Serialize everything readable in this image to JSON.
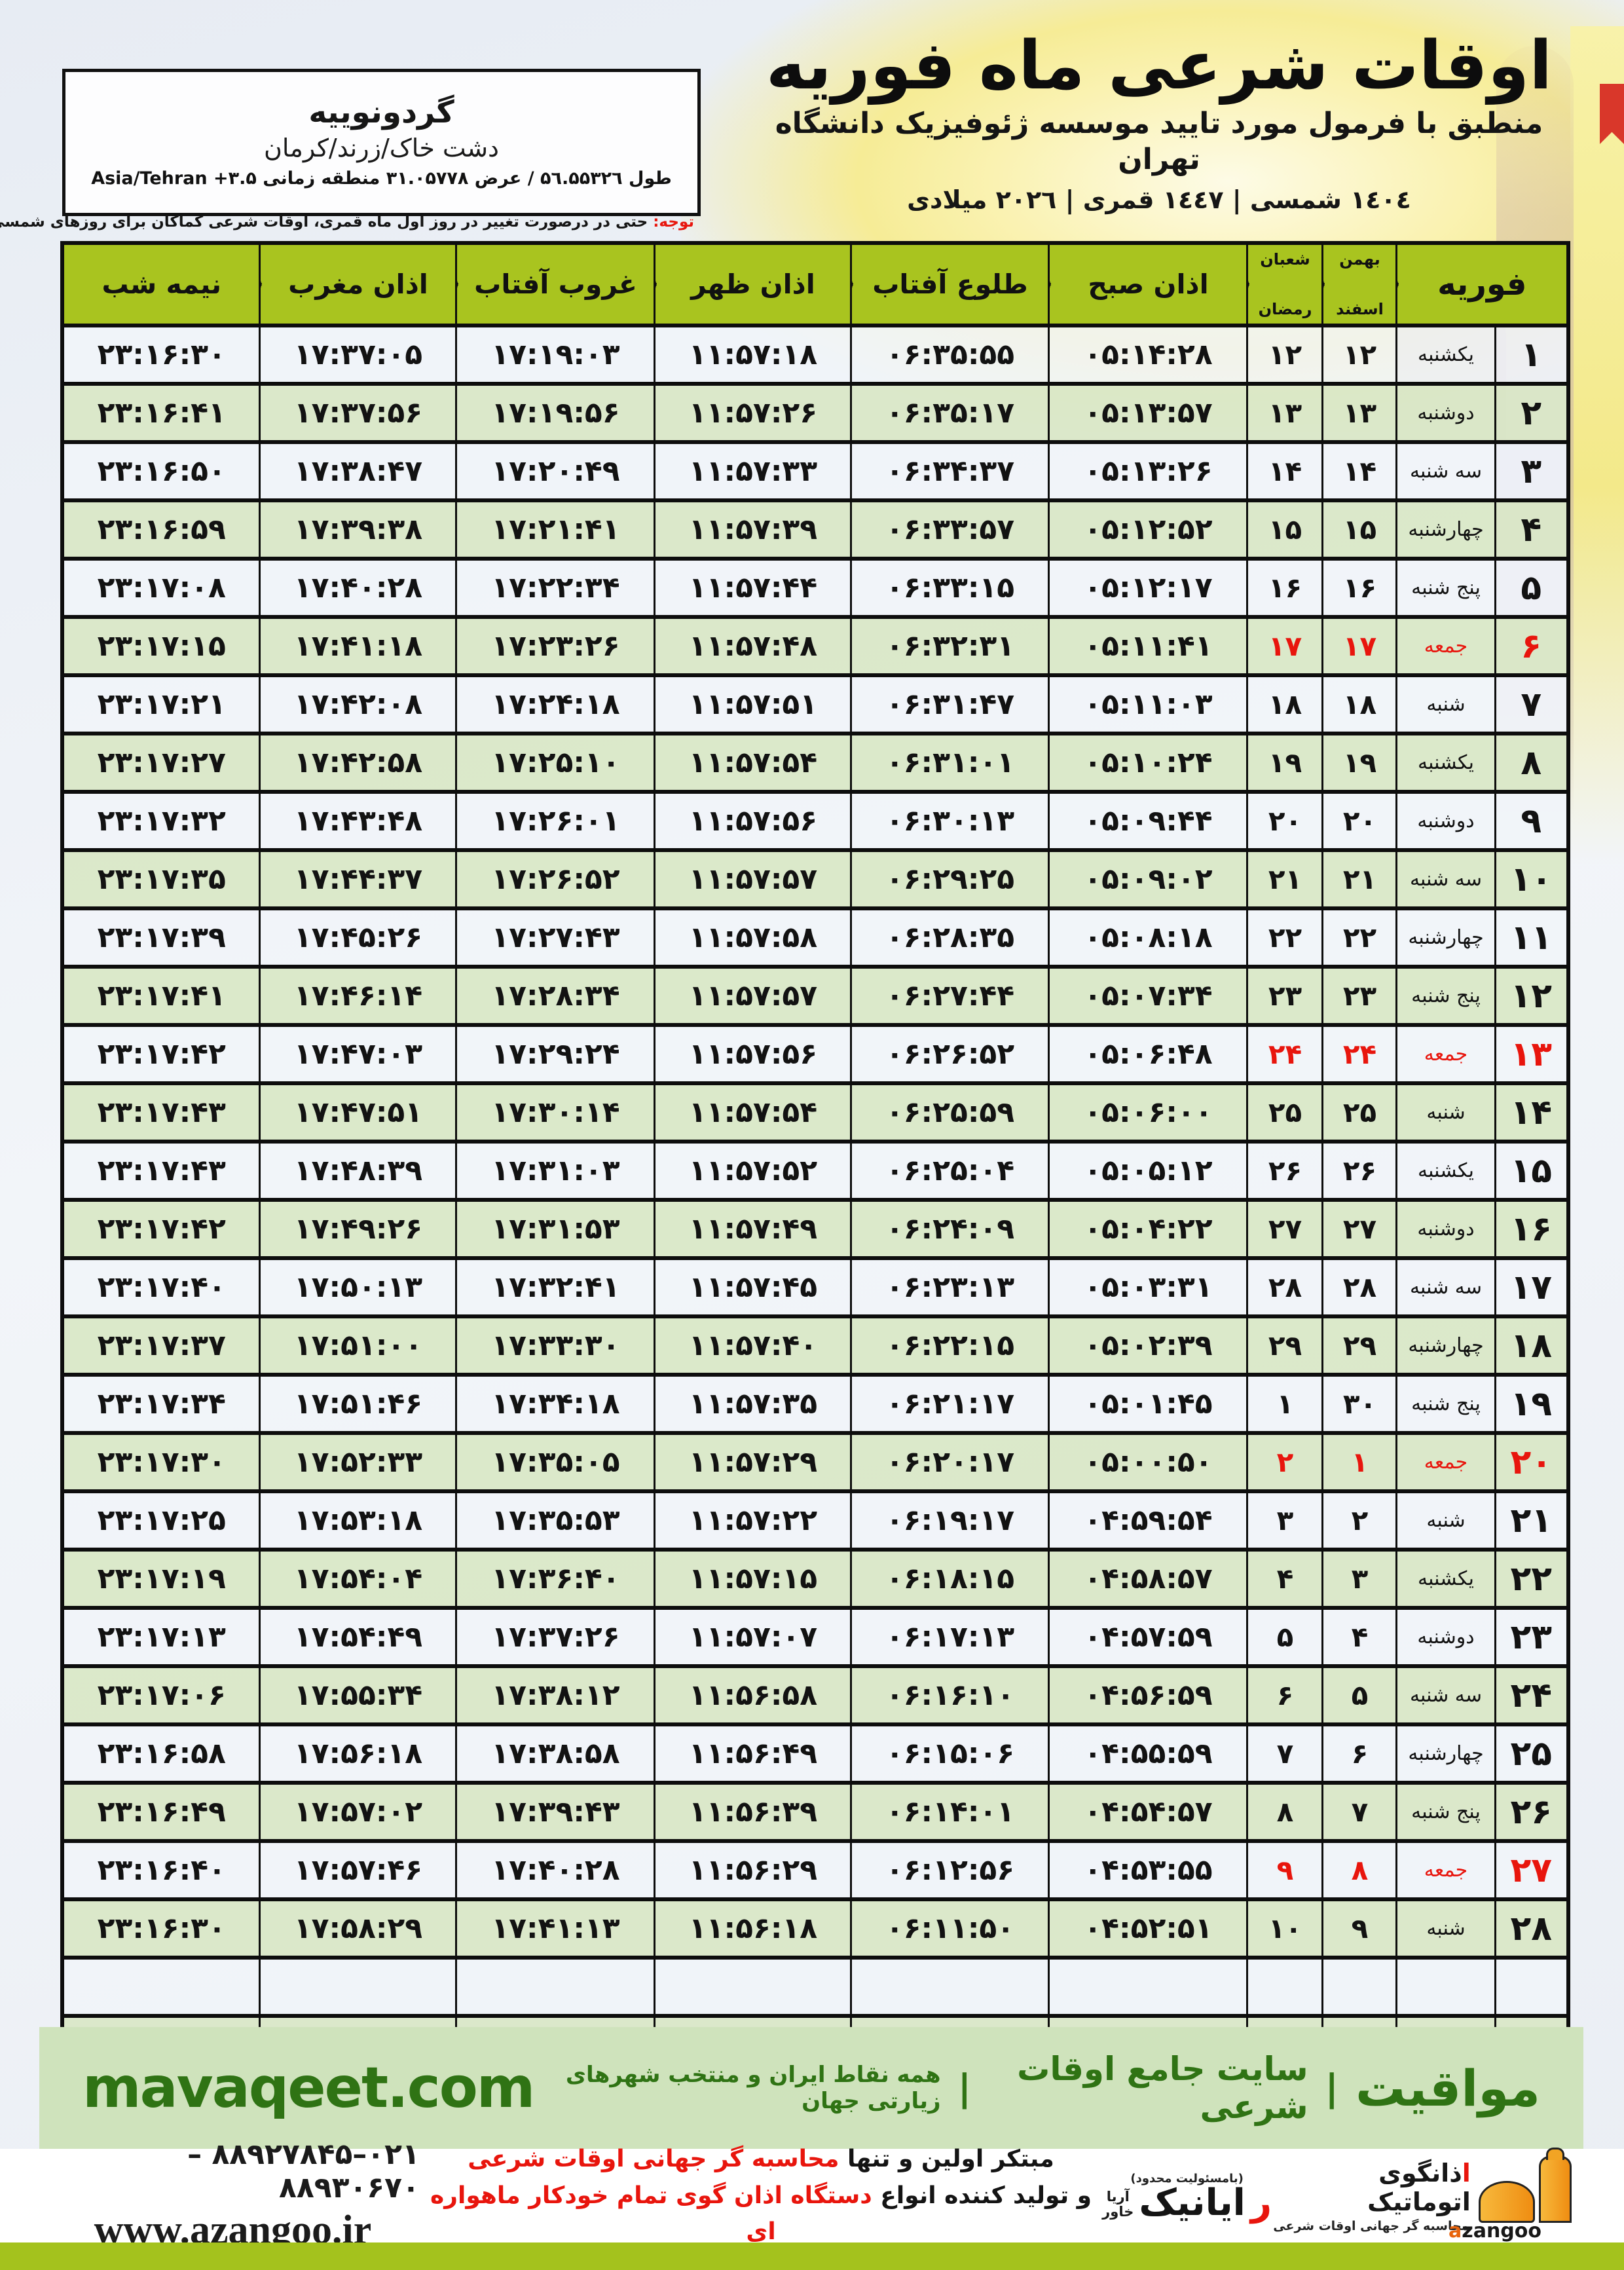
{
  "colors": {
    "header_green": "#a9c41f",
    "row_green": "#d9e7c6",
    "row_white": "#f1f4f9",
    "accent_red": "#e8150d",
    "band_bg": "#cfe3bc",
    "band_text": "#2f7314",
    "lime_bar": "#a4c21d",
    "logo_orange": "#ef8d12"
  },
  "header": {
    "title": "اوقات شرعی ماه فوریه",
    "subtitle": "منطبق با فرمول مورد تایید موسسه ژئوفیزیک دانشگاه تهران",
    "dateline": "۱٤۰٤ شمسی | ۱٤٤۷ قمری | ۲۰۲٦ میلادی"
  },
  "location_box": {
    "city": "گردونوییه",
    "region": "دشت خاک/زرند/کرمان",
    "coords_fa": "طول ۵٦.۵۵۳۲٦ / عرض ۳۱.۰۵۷۷۸ منطقه زمانی",
    "coords_en": "Asia/Tehran +۳.۵"
  },
  "note": {
    "prefix": "توجه:",
    "text": " حتی در درصورت تغییر در روز اول ماه قمری، اوقات شرعی کماکان برای روزهای شمسی و میلادی معتبر است."
  },
  "table": {
    "headers": {
      "feb": "فوریه",
      "solar_top": "بهمن",
      "solar_bottom": "اسفند",
      "lunar_top": "شعبان",
      "lunar_bottom": "رمضان",
      "fajr": "اذان صبح",
      "sunrise": "طلوع آفتاب",
      "dhuhr": "اذان ظهر",
      "sunset": "غروب آفتاب",
      "maghrib": "اذان مغرب",
      "midnight": "نیمه شب"
    },
    "empty_rows": 3,
    "rows": [
      {
        "feb": "۱",
        "day": "یکشنبه",
        "solar": "۱۲",
        "lunar": "۱۲",
        "fajr": "۰۵:۱۴:۲۸",
        "sunrise": "۰۶:۳۵:۵۵",
        "dhuhr": "۱۱:۵۷:۱۸",
        "sunset": "۱۷:۱۹:۰۳",
        "maghrib": "۱۷:۳۷:۰۵",
        "midnight": "۲۳:۱۶:۳۰",
        "friday": false
      },
      {
        "feb": "۲",
        "day": "دوشنبه",
        "solar": "۱۳",
        "lunar": "۱۳",
        "fajr": "۰۵:۱۳:۵۷",
        "sunrise": "۰۶:۳۵:۱۷",
        "dhuhr": "۱۱:۵۷:۲۶",
        "sunset": "۱۷:۱۹:۵۶",
        "maghrib": "۱۷:۳۷:۵۶",
        "midnight": "۲۳:۱۶:۴۱",
        "friday": false
      },
      {
        "feb": "۳",
        "day": "سه شنبه",
        "solar": "۱۴",
        "lunar": "۱۴",
        "fajr": "۰۵:۱۳:۲۶",
        "sunrise": "۰۶:۳۴:۳۷",
        "dhuhr": "۱۱:۵۷:۳۳",
        "sunset": "۱۷:۲۰:۴۹",
        "maghrib": "۱۷:۳۸:۴۷",
        "midnight": "۲۳:۱۶:۵۰",
        "friday": false
      },
      {
        "feb": "۴",
        "day": "چهارشنبه",
        "solar": "۱۵",
        "lunar": "۱۵",
        "fajr": "۰۵:۱۲:۵۲",
        "sunrise": "۰۶:۳۳:۵۷",
        "dhuhr": "۱۱:۵۷:۳۹",
        "sunset": "۱۷:۲۱:۴۱",
        "maghrib": "۱۷:۳۹:۳۸",
        "midnight": "۲۳:۱۶:۵۹",
        "friday": false
      },
      {
        "feb": "۵",
        "day": "پنج شنبه",
        "solar": "۱۶",
        "lunar": "۱۶",
        "fajr": "۰۵:۱۲:۱۷",
        "sunrise": "۰۶:۳۳:۱۵",
        "dhuhr": "۱۱:۵۷:۴۴",
        "sunset": "۱۷:۲۲:۳۴",
        "maghrib": "۱۷:۴۰:۲۸",
        "midnight": "۲۳:۱۷:۰۸",
        "friday": false
      },
      {
        "feb": "۶",
        "day": "جمعه",
        "solar": "۱۷",
        "lunar": "۱۷",
        "fajr": "۰۵:۱۱:۴۱",
        "sunrise": "۰۶:۳۲:۳۱",
        "dhuhr": "۱۱:۵۷:۴۸",
        "sunset": "۱۷:۲۳:۲۶",
        "maghrib": "۱۷:۴۱:۱۸",
        "midnight": "۲۳:۱۷:۱۵",
        "friday": true
      },
      {
        "feb": "۷",
        "day": "شنبه",
        "solar": "۱۸",
        "lunar": "۱۸",
        "fajr": "۰۵:۱۱:۰۳",
        "sunrise": "۰۶:۳۱:۴۷",
        "dhuhr": "۱۱:۵۷:۵۱",
        "sunset": "۱۷:۲۴:۱۸",
        "maghrib": "۱۷:۴۲:۰۸",
        "midnight": "۲۳:۱۷:۲۱",
        "friday": false
      },
      {
        "feb": "۸",
        "day": "یکشنبه",
        "solar": "۱۹",
        "lunar": "۱۹",
        "fajr": "۰۵:۱۰:۲۴",
        "sunrise": "۰۶:۳۱:۰۱",
        "dhuhr": "۱۱:۵۷:۵۴",
        "sunset": "۱۷:۲۵:۱۰",
        "maghrib": "۱۷:۴۲:۵۸",
        "midnight": "۲۳:۱۷:۲۷",
        "friday": false
      },
      {
        "feb": "۹",
        "day": "دوشنبه",
        "solar": "۲۰",
        "lunar": "۲۰",
        "fajr": "۰۵:۰۹:۴۴",
        "sunrise": "۰۶:۳۰:۱۳",
        "dhuhr": "۱۱:۵۷:۵۶",
        "sunset": "۱۷:۲۶:۰۱",
        "maghrib": "۱۷:۴۳:۴۸",
        "midnight": "۲۳:۱۷:۳۲",
        "friday": false
      },
      {
        "feb": "۱۰",
        "day": "سه شنبه",
        "solar": "۲۱",
        "lunar": "۲۱",
        "fajr": "۰۵:۰۹:۰۲",
        "sunrise": "۰۶:۲۹:۲۵",
        "dhuhr": "۱۱:۵۷:۵۷",
        "sunset": "۱۷:۲۶:۵۲",
        "maghrib": "۱۷:۴۴:۳۷",
        "midnight": "۲۳:۱۷:۳۵",
        "friday": false
      },
      {
        "feb": "۱۱",
        "day": "چهارشنبه",
        "solar": "۲۲",
        "lunar": "۲۲",
        "fajr": "۰۵:۰۸:۱۸",
        "sunrise": "۰۶:۲۸:۳۵",
        "dhuhr": "۱۱:۵۷:۵۸",
        "sunset": "۱۷:۲۷:۴۳",
        "maghrib": "۱۷:۴۵:۲۶",
        "midnight": "۲۳:۱۷:۳۹",
        "friday": false
      },
      {
        "feb": "۱۲",
        "day": "پنج شنبه",
        "solar": "۲۳",
        "lunar": "۲۳",
        "fajr": "۰۵:۰۷:۳۴",
        "sunrise": "۰۶:۲۷:۴۴",
        "dhuhr": "۱۱:۵۷:۵۷",
        "sunset": "۱۷:۲۸:۳۴",
        "maghrib": "۱۷:۴۶:۱۴",
        "midnight": "۲۳:۱۷:۴۱",
        "friday": false
      },
      {
        "feb": "۱۳",
        "day": "جمعه",
        "solar": "۲۴",
        "lunar": "۲۴",
        "fajr": "۰۵:۰۶:۴۸",
        "sunrise": "۰۶:۲۶:۵۲",
        "dhuhr": "۱۱:۵۷:۵۶",
        "sunset": "۱۷:۲۹:۲۴",
        "maghrib": "۱۷:۴۷:۰۳",
        "midnight": "۲۳:۱۷:۴۲",
        "friday": true
      },
      {
        "feb": "۱۴",
        "day": "شنبه",
        "solar": "۲۵",
        "lunar": "۲۵",
        "fajr": "۰۵:۰۶:۰۰",
        "sunrise": "۰۶:۲۵:۵۹",
        "dhuhr": "۱۱:۵۷:۵۴",
        "sunset": "۱۷:۳۰:۱۴",
        "maghrib": "۱۷:۴۷:۵۱",
        "midnight": "۲۳:۱۷:۴۳",
        "friday": false
      },
      {
        "feb": "۱۵",
        "day": "یکشنبه",
        "solar": "۲۶",
        "lunar": "۲۶",
        "fajr": "۰۵:۰۵:۱۲",
        "sunrise": "۰۶:۲۵:۰۴",
        "dhuhr": "۱۱:۵۷:۵۲",
        "sunset": "۱۷:۳۱:۰۳",
        "maghrib": "۱۷:۴۸:۳۹",
        "midnight": "۲۳:۱۷:۴۳",
        "friday": false
      },
      {
        "feb": "۱۶",
        "day": "دوشنبه",
        "solar": "۲۷",
        "lunar": "۲۷",
        "fajr": "۰۵:۰۴:۲۲",
        "sunrise": "۰۶:۲۴:۰۹",
        "dhuhr": "۱۱:۵۷:۴۹",
        "sunset": "۱۷:۳۱:۵۳",
        "maghrib": "۱۷:۴۹:۲۶",
        "midnight": "۲۳:۱۷:۴۲",
        "friday": false
      },
      {
        "feb": "۱۷",
        "day": "سه شنبه",
        "solar": "۲۸",
        "lunar": "۲۸",
        "fajr": "۰۵:۰۳:۳۱",
        "sunrise": "۰۶:۲۳:۱۳",
        "dhuhr": "۱۱:۵۷:۴۵",
        "sunset": "۱۷:۳۲:۴۱",
        "maghrib": "۱۷:۵۰:۱۳",
        "midnight": "۲۳:۱۷:۴۰",
        "friday": false
      },
      {
        "feb": "۱۸",
        "day": "چهارشنبه",
        "solar": "۲۹",
        "lunar": "۲۹",
        "fajr": "۰۵:۰۲:۳۹",
        "sunrise": "۰۶:۲۲:۱۵",
        "dhuhr": "۱۱:۵۷:۴۰",
        "sunset": "۱۷:۳۳:۳۰",
        "maghrib": "۱۷:۵۱:۰۰",
        "midnight": "۲۳:۱۷:۳۷",
        "friday": false
      },
      {
        "feb": "۱۹",
        "day": "پنج شنبه",
        "solar": "۳۰",
        "lunar": "۱",
        "fajr": "۰۵:۰۱:۴۵",
        "sunrise": "۰۶:۲۱:۱۷",
        "dhuhr": "۱۱:۵۷:۳۵",
        "sunset": "۱۷:۳۴:۱۸",
        "maghrib": "۱۷:۵۱:۴۶",
        "midnight": "۲۳:۱۷:۳۴",
        "friday": false
      },
      {
        "feb": "۲۰",
        "day": "جمعه",
        "solar": "۱",
        "lunar": "۲",
        "fajr": "۰۵:۰۰:۵۰",
        "sunrise": "۰۶:۲۰:۱۷",
        "dhuhr": "۱۱:۵۷:۲۹",
        "sunset": "۱۷:۳۵:۰۵",
        "maghrib": "۱۷:۵۲:۳۳",
        "midnight": "۲۳:۱۷:۳۰",
        "friday": true
      },
      {
        "feb": "۲۱",
        "day": "شنبه",
        "solar": "۲",
        "lunar": "۳",
        "fajr": "۰۴:۵۹:۵۴",
        "sunrise": "۰۶:۱۹:۱۷",
        "dhuhr": "۱۱:۵۷:۲۲",
        "sunset": "۱۷:۳۵:۵۳",
        "maghrib": "۱۷:۵۳:۱۸",
        "midnight": "۲۳:۱۷:۲۵",
        "friday": false
      },
      {
        "feb": "۲۲",
        "day": "یکشنبه",
        "solar": "۳",
        "lunar": "۴",
        "fajr": "۰۴:۵۸:۵۷",
        "sunrise": "۰۶:۱۸:۱۵",
        "dhuhr": "۱۱:۵۷:۱۵",
        "sunset": "۱۷:۳۶:۴۰",
        "maghrib": "۱۷:۵۴:۰۴",
        "midnight": "۲۳:۱۷:۱۹",
        "friday": false
      },
      {
        "feb": "۲۳",
        "day": "دوشنبه",
        "solar": "۴",
        "lunar": "۵",
        "fajr": "۰۴:۵۷:۵۹",
        "sunrise": "۰۶:۱۷:۱۳",
        "dhuhr": "۱۱:۵۷:۰۷",
        "sunset": "۱۷:۳۷:۲۶",
        "maghrib": "۱۷:۵۴:۴۹",
        "midnight": "۲۳:۱۷:۱۳",
        "friday": false
      },
      {
        "feb": "۲۴",
        "day": "سه شنبه",
        "solar": "۵",
        "lunar": "۶",
        "fajr": "۰۴:۵۶:۵۹",
        "sunrise": "۰۶:۱۶:۱۰",
        "dhuhr": "۱۱:۵۶:۵۸",
        "sunset": "۱۷:۳۸:۱۲",
        "maghrib": "۱۷:۵۵:۳۴",
        "midnight": "۲۳:۱۷:۰۶",
        "friday": false
      },
      {
        "feb": "۲۵",
        "day": "چهارشنبه",
        "solar": "۶",
        "lunar": "۷",
        "fajr": "۰۴:۵۵:۵۹",
        "sunrise": "۰۶:۱۵:۰۶",
        "dhuhr": "۱۱:۵۶:۴۹",
        "sunset": "۱۷:۳۸:۵۸",
        "maghrib": "۱۷:۵۶:۱۸",
        "midnight": "۲۳:۱۶:۵۸",
        "friday": false
      },
      {
        "feb": "۲۶",
        "day": "پنج شنبه",
        "solar": "۷",
        "lunar": "۸",
        "fajr": "۰۴:۵۴:۵۷",
        "sunrise": "۰۶:۱۴:۰۱",
        "dhuhr": "۱۱:۵۶:۳۹",
        "sunset": "۱۷:۳۹:۴۳",
        "maghrib": "۱۷:۵۷:۰۲",
        "midnight": "۲۳:۱۶:۴۹",
        "friday": false
      },
      {
        "feb": "۲۷",
        "day": "جمعه",
        "solar": "۸",
        "lunar": "۹",
        "fajr": "۰۴:۵۳:۵۵",
        "sunrise": "۰۶:۱۲:۵۶",
        "dhuhr": "۱۱:۵۶:۲۹",
        "sunset": "۱۷:۴۰:۲۸",
        "maghrib": "۱۷:۵۷:۴۶",
        "midnight": "۲۳:۱۶:۴۰",
        "friday": true
      },
      {
        "feb": "۲۸",
        "day": "شنبه",
        "solar": "۹",
        "lunar": "۱۰",
        "fajr": "۰۴:۵۲:۵۱",
        "sunrise": "۰۶:۱۱:۵۰",
        "dhuhr": "۱۱:۵۶:۱۸",
        "sunset": "۱۷:۴۱:۱۳",
        "maghrib": "۱۷:۵۸:۲۹",
        "midnight": "۲۳:۱۶:۳۰",
        "friday": false
      }
    ]
  },
  "footer_band": {
    "brand": "مواقیت",
    "sep": "|",
    "site_label": "سایت جامع اوقات شرعی",
    "coverage": "همه نقاط ایران و منتخب شهرهای زیارتی جهان",
    "domain": "mavaqeet.com"
  },
  "bottom": {
    "azangoo_fa_first": "ا",
    "azangoo_fa_rest": "ذانگوی اتوماتیک",
    "azangoo_tagline": "محاسبه گر جهانی اوقات شرعی",
    "azangoo_latin_a": "a",
    "azangoo_latin_rest": "zangoo",
    "rayanik_note": "(بامسئولیت محدود)",
    "rayanik_first": "ر",
    "rayanik_rest": "ایانیک",
    "rayanik_sub_top": "آریا",
    "rayanik_sub_bottom": "خاور",
    "line1_black": "مبتکر اولین و تنها ",
    "line1_red": "محاسبه گر جهانی اوقات شرعی",
    "line2_black": "و تولید کننده انواع ",
    "line2_red": "دستگاه اذان گوی تمام خودکار ماهواره ای",
    "phones": "۰۲۱–۸۸۹۲۷۸۴۵ – ۸۸۹۳۰۶۷۰",
    "website": "www.azangoo.ir"
  }
}
